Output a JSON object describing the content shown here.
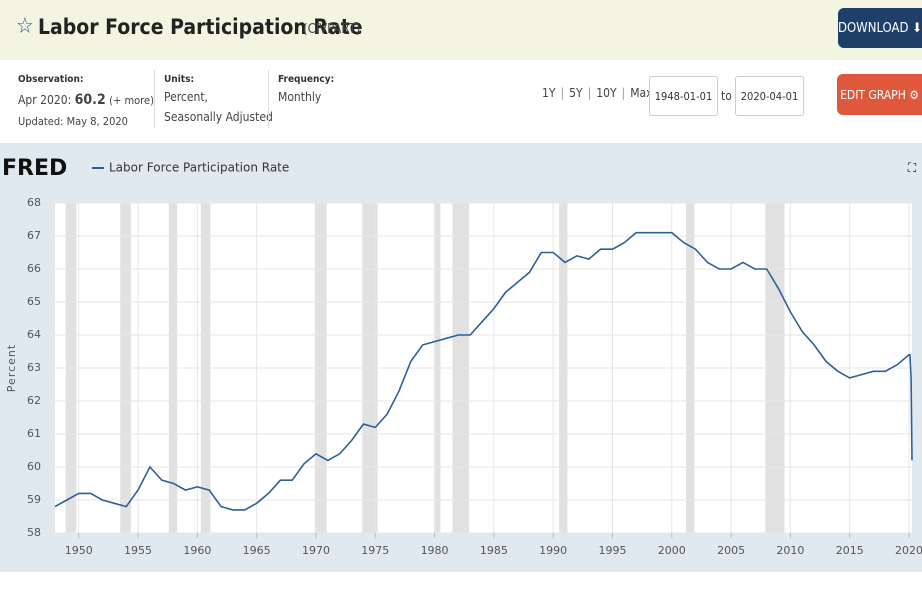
{
  "header": {
    "title": "Labor Force Participation Rate",
    "series_id": "(CIVPART)",
    "download": "DOWNLOAD"
  },
  "info": {
    "observation_label": "Observation:",
    "observation_date": "Apr 2020:",
    "observation_value": "60.2",
    "more": "(+ more)",
    "updated": "Updated: May 8, 2020",
    "units_label": "Units:",
    "units_1": "Percent,",
    "units_2": "Seasonally Adjusted",
    "frequency_label": "Frequency:",
    "frequency": "Monthly"
  },
  "controls": {
    "ranges": [
      "1Y",
      "5Y",
      "10Y",
      "Max"
    ],
    "separator": "|",
    "start": "1948-01-01",
    "to": "to",
    "end": "2020-04-01",
    "edit": "EDIT GRAPH"
  },
  "chart_data": {
    "type": "line",
    "brand": "FRED",
    "ylabel": "Percent",
    "xlim": [
      1948,
      2020.25
    ],
    "ylim": [
      58,
      68
    ],
    "xticks": [
      1950,
      1955,
      1960,
      1965,
      1970,
      1975,
      1980,
      1985,
      1990,
      1995,
      2000,
      2005,
      2010,
      2015,
      2020
    ],
    "yticks": [
      58,
      59,
      60,
      61,
      62,
      63,
      64,
      65,
      66,
      67,
      68
    ],
    "grid": true,
    "recessions": [
      [
        1948.9,
        1949.8
      ],
      [
        1953.5,
        1954.4
      ],
      [
        1957.6,
        1958.3
      ],
      [
        1960.3,
        1961.1
      ],
      [
        1969.9,
        1970.9
      ],
      [
        1973.9,
        1975.2
      ],
      [
        1980.0,
        1980.5
      ],
      [
        1981.5,
        1982.9
      ],
      [
        1990.5,
        1991.2
      ],
      [
        2001.2,
        2001.9
      ],
      [
        2007.9,
        2009.5
      ]
    ],
    "x": [
      1948,
      1949,
      1950,
      1951,
      1952,
      1953,
      1954,
      1955,
      1956,
      1957,
      1958,
      1959,
      1960,
      1961,
      1962,
      1963,
      1964,
      1965,
      1966,
      1967,
      1968,
      1969,
      1970,
      1971,
      1972,
      1973,
      1974,
      1975,
      1976,
      1977,
      1978,
      1979,
      1980,
      1981,
      1982,
      1983,
      1984,
      1985,
      1986,
      1987,
      1988,
      1989,
      1990,
      1991,
      1992,
      1993,
      1994,
      1995,
      1996,
      1997,
      1998,
      1999,
      2000,
      2001,
      2002,
      2003,
      2004,
      2005,
      2006,
      2007,
      2008,
      2009,
      2010,
      2011,
      2012,
      2013,
      2014,
      2015,
      2016,
      2017,
      2018,
      2019,
      2020,
      2020.08,
      2020.17,
      2020.25
    ],
    "series": [
      {
        "name": "Labor Force Participation Rate",
        "color": "#2f5f98",
        "values": [
          58.8,
          59.0,
          59.2,
          59.2,
          59.0,
          58.9,
          58.8,
          59.3,
          60.0,
          59.6,
          59.5,
          59.3,
          59.4,
          59.3,
          58.8,
          58.7,
          58.7,
          58.9,
          59.2,
          59.6,
          59.6,
          60.1,
          60.4,
          60.2,
          60.4,
          60.8,
          61.3,
          61.2,
          61.6,
          62.3,
          63.2,
          63.7,
          63.8,
          63.9,
          64.0,
          64.0,
          64.4,
          64.8,
          65.3,
          65.6,
          65.9,
          66.5,
          66.5,
          66.2,
          66.4,
          66.3,
          66.6,
          66.6,
          66.8,
          67.1,
          67.1,
          67.1,
          67.1,
          66.8,
          66.6,
          66.2,
          66.0,
          66.0,
          66.2,
          66.0,
          66.0,
          65.4,
          64.7,
          64.1,
          63.7,
          63.2,
          62.9,
          62.7,
          62.8,
          62.9,
          62.9,
          63.1,
          63.4,
          63.4,
          62.7,
          60.2
        ]
      }
    ]
  }
}
